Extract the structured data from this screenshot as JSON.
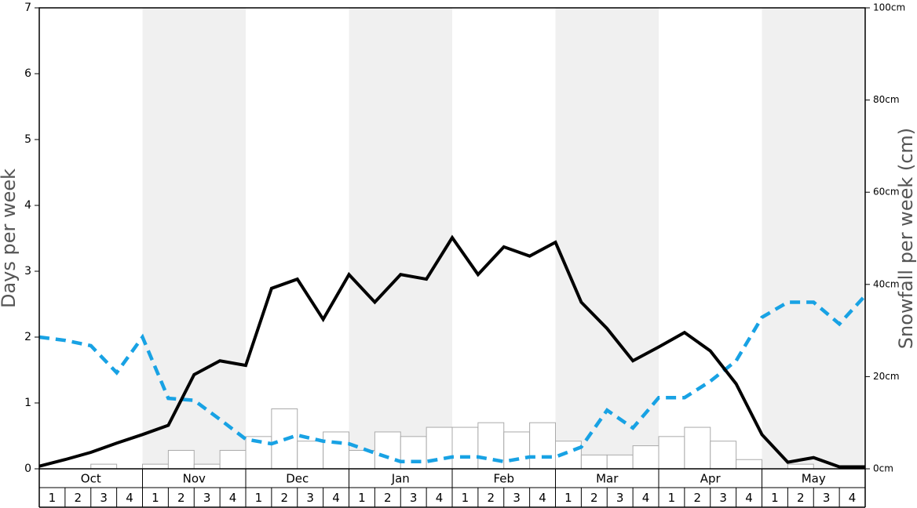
{
  "chart_data": {
    "type": "bar-line",
    "y_label": "Days per week",
    "y2_label": "Snowfall per week (cm)",
    "months": [
      "Oct",
      "Nov",
      "Dec",
      "Jan",
      "Feb",
      "Mar",
      "Apr",
      "May"
    ],
    "weeks": [
      1,
      2,
      3,
      4
    ],
    "ylim": [
      0,
      7
    ],
    "yticks": [
      0,
      1,
      2,
      3,
      4,
      5,
      6,
      7
    ],
    "y2lim": [
      0,
      100
    ],
    "y2ticks": [
      {
        "value": 0,
        "label": "0cm"
      },
      {
        "value": 20,
        "label": "20cm"
      },
      {
        "value": 40,
        "label": "40cm"
      },
      {
        "value": 60,
        "label": "60cm"
      },
      {
        "value": 80,
        "label": "80cm"
      },
      {
        "value": 100,
        "label": "100cm"
      }
    ],
    "series": [
      {
        "kind": "bar",
        "axis": "y2",
        "color": "#ffffff",
        "edge_color": "#aaaaaa",
        "values": [
          0,
          0,
          1,
          0,
          1,
          4,
          1,
          4,
          7,
          13,
          6,
          8,
          4,
          8,
          7,
          9,
          9,
          10,
          8,
          10,
          6,
          3,
          3,
          5,
          7,
          9,
          6,
          2,
          0,
          1,
          0,
          0
        ]
      },
      {
        "kind": "line",
        "color": "#18a2e4",
        "dashed": true,
        "values": [
          2.0,
          1.95,
          1.87,
          1.46,
          2.0,
          1.07,
          1.04,
          0.75,
          0.45,
          0.38,
          0.51,
          0.42,
          0.38,
          0.24,
          0.11,
          0.11,
          0.18,
          0.18,
          0.11,
          0.18,
          0.18,
          0.33,
          0.89,
          0.62,
          1.08,
          1.08,
          1.33,
          1.64,
          2.3,
          2.53,
          2.53,
          2.2,
          2.63
        ]
      },
      {
        "kind": "line",
        "color": "#000000",
        "dashed": false,
        "values": [
          0.04,
          0.14,
          0.25,
          0.39,
          0.52,
          0.66,
          1.43,
          1.64,
          1.57,
          2.74,
          2.88,
          2.27,
          2.95,
          2.53,
          2.95,
          2.88,
          3.51,
          2.95,
          3.37,
          3.23,
          3.44,
          2.53,
          2.13,
          1.64,
          1.85,
          2.07,
          1.79,
          1.29,
          0.52,
          0.1,
          0.17,
          0.03,
          0.03
        ]
      }
    ]
  }
}
